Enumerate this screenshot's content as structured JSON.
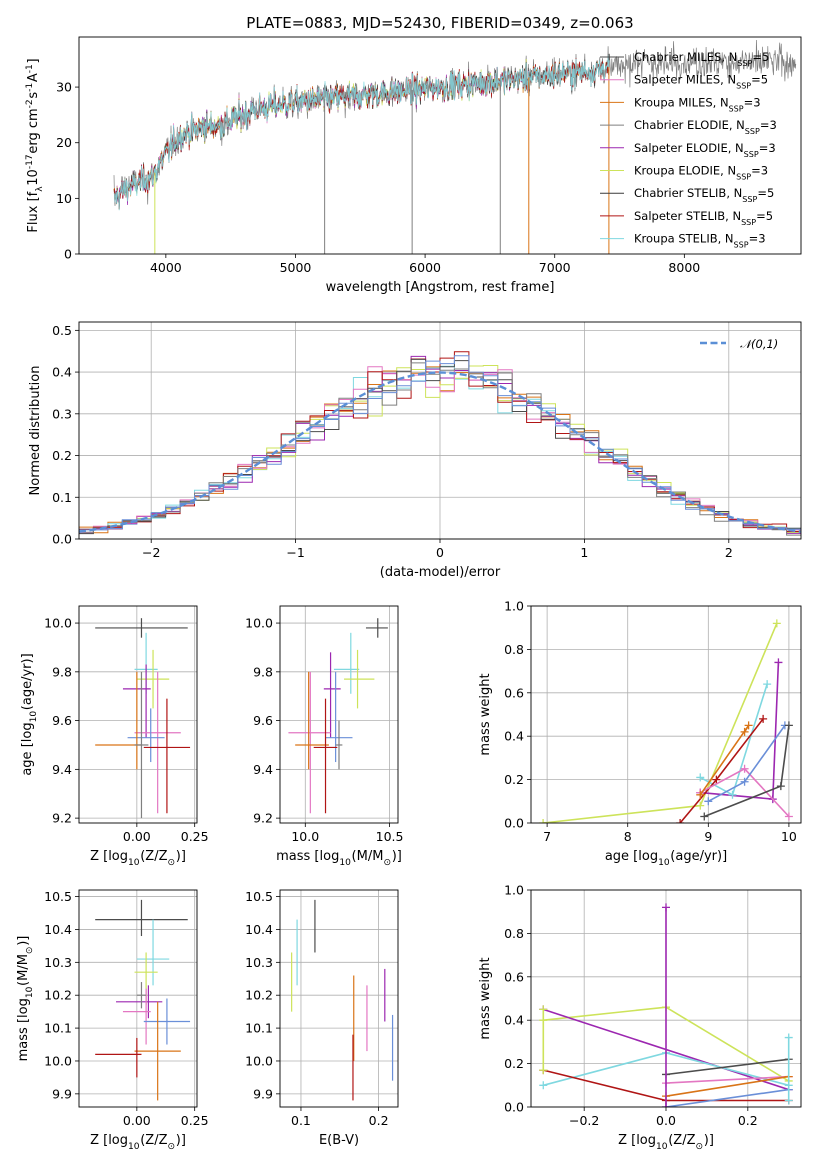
{
  "colors": {
    "Chabrier MILES": "#4c4c4c",
    "Salpeter MILES": "#e377c2",
    "Kroupa MILES": "#d97417",
    "Chabrier ELODIE": "#7f7f7f",
    "Salpeter ELODIE": "#9c27b0",
    "Kroupa ELODIE": "#cde35a",
    "Chabrier STELIB": "#3a3a3a",
    "Salpeter STELIB": "#b01515",
    "Kroupa STELIB": "#7fd8e0",
    "panel2_extra": [
      "#d97417",
      "#7fd8e0",
      "#cde35a",
      "#9c27b0",
      "#e377c2",
      "#b01515",
      "#4c4c4c",
      "#7f7f7f",
      "#6a8fd8"
    ],
    "age_line_colors": [
      "#cde35a",
      "#9c27b0",
      "#7fd8e0",
      "#b01515",
      "#e377c2",
      "#6a8fd8",
      "#4c4c4c",
      "#d97417"
    ],
    "err_colors": [
      "#4c4c4c",
      "#7fd8e0",
      "#cde35a",
      "#9c27b0",
      "#e377c2",
      "#6a8fd8",
      "#d97417",
      "#b01515",
      "#7f7f7f"
    ],
    "normal": "#5b8fd6"
  },
  "chart_data": [
    {
      "type": "line",
      "id": "spectrum",
      "title": "PLATE=0883, MJD=52430, FIBERID=0349, z=0.063",
      "xlabel": "wavelength [Angstrom, rest frame]",
      "ylabel": "Flux [f$_\\lambda$10$^{-17}$ erg cm$^{-2}$ s$^{-1}$ A$^{-1}$]",
      "xlim": [
        3330,
        8900
      ],
      "ylim": [
        0,
        39
      ],
      "xticks": [
        4000,
        5000,
        6000,
        7000,
        8000
      ],
      "yticks": [
        0,
        10,
        20,
        30
      ],
      "grid": false,
      "legend_position": "right",
      "legend": [
        {
          "base": "Chabrier MILES",
          "n": "5"
        },
        {
          "base": "Salpeter MILES",
          "n": "5"
        },
        {
          "base": "Kroupa MILES",
          "n": "3"
        },
        {
          "base": "Chabrier ELODIE",
          "n": "3"
        },
        {
          "base": "Salpeter ELODIE",
          "n": "3"
        },
        {
          "base": "Kroupa ELODIE",
          "n": "3"
        },
        {
          "base": "Chabrier STELIB",
          "n": "5"
        },
        {
          "base": "Salpeter STELIB",
          "n": "5"
        },
        {
          "base": "Kroupa STELIB",
          "n": "3"
        }
      ],
      "continuum": {
        "x": [
          3600,
          3700,
          3800,
          3900,
          4000,
          4100,
          4200,
          4300,
          4400,
          4500,
          4700,
          4900,
          5100,
          5300,
          5500,
          5700,
          5900,
          6100,
          6300,
          6500,
          6700,
          6900,
          7100,
          7300,
          7500,
          7700,
          7900,
          8100,
          8300,
          8500,
          8700,
          8850
        ],
        "y": [
          10,
          12,
          13,
          14,
          18,
          21,
          22,
          23,
          23,
          24,
          26,
          27,
          27.5,
          28,
          28.5,
          29,
          29.5,
          30,
          30.5,
          31,
          31.5,
          32,
          32.5,
          33,
          34,
          34.5,
          34.5,
          34.5,
          34.5,
          34.5,
          34.5,
          34.5
        ]
      }
    },
    {
      "type": "step",
      "id": "residuals",
      "xlabel": "(data-model)/error",
      "ylabel": "Normed distribution",
      "xlim": [
        -2.5,
        2.5
      ],
      "ylim": [
        0,
        0.52
      ],
      "xticks": [
        -2,
        -1,
        0,
        1,
        2
      ],
      "yticks": [
        0.0,
        0.1,
        0.2,
        0.3,
        0.4,
        0.5
      ],
      "grid": true,
      "legend_position": "top-right",
      "legend_label": "$\\mathcal{N}(0,1)$",
      "bins": {
        "start": -2.5,
        "width": 0.1,
        "count": 50
      }
    },
    {
      "type": "scatter",
      "id": "age_vs_Z",
      "xlabel": "Z [log$_{10}$(Z/Z$_\\odot$)]",
      "ylabel": "age  [log$_{10}$(age/yr)]",
      "xlim": [
        -0.25,
        0.26
      ],
      "ylim": [
        9.18,
        10.07
      ],
      "xticks": [
        0.0,
        0.25
      ],
      "yticks": [
        9.2,
        9.4,
        9.6,
        9.8,
        10.0
      ],
      "grid": true,
      "points": [
        {
          "x": 0.02,
          "y": 9.98,
          "xerr": [
            0.2,
            0.2
          ],
          "yerr": [
            0.04,
            0.04
          ]
        },
        {
          "x": 0.04,
          "y": 9.81,
          "xerr": [
            0.05,
            0.05
          ],
          "yerr": [
            0.1,
            0.15
          ]
        },
        {
          "x": 0.07,
          "y": 9.77,
          "xerr": [
            0.07,
            0.07
          ],
          "yerr": [
            0.12,
            0.12
          ]
        },
        {
          "x": 0.04,
          "y": 9.73,
          "xerr": [
            0.1,
            0.02
          ],
          "yerr": [
            0.2,
            0.1
          ]
        },
        {
          "x": 0.09,
          "y": 9.55,
          "xerr": [
            0.1,
            0.1
          ],
          "yerr": [
            0.33,
            0.25
          ]
        },
        {
          "x": 0.06,
          "y": 9.53,
          "xerr": [
            0.1,
            0.06
          ],
          "yerr": [
            0.1,
            0.12
          ]
        },
        {
          "x": 0.0,
          "y": 9.5,
          "xerr": [
            0.18,
            0.02
          ],
          "yerr": [
            0.1,
            0.3
          ]
        },
        {
          "x": 0.13,
          "y": 9.49,
          "xerr": [
            0.1,
            0.1
          ],
          "yerr": [
            0.27,
            0.2
          ]
        },
        {
          "x": 0.02,
          "y": 9.5,
          "xerr": [
            0.03,
            0.03
          ],
          "yerr": [
            0.3,
            0.3
          ]
        }
      ]
    },
    {
      "type": "scatter",
      "id": "age_vs_mass",
      "xlabel": "mass [log$_{10}$(M/M$_\\odot$)]",
      "ylabel": "",
      "xlim": [
        9.85,
        10.55
      ],
      "ylim": [
        9.18,
        10.07
      ],
      "xticks": [
        10.0,
        10.5
      ],
      "yticks": [
        9.2,
        9.4,
        9.6,
        9.8,
        10.0
      ],
      "grid": true,
      "points": [
        {
          "x": 10.43,
          "y": 9.98,
          "xerr": [
            0.07,
            0.06
          ],
          "yerr": [
            0.04,
            0.04
          ]
        },
        {
          "x": 10.27,
          "y": 9.81,
          "xerr": [
            0.1,
            0.05
          ],
          "yerr": [
            0.1,
            0.15
          ]
        },
        {
          "x": 10.31,
          "y": 9.77,
          "xerr": [
            0.08,
            0.1
          ],
          "yerr": [
            0.12,
            0.12
          ]
        },
        {
          "x": 10.15,
          "y": 9.73,
          "xerr": [
            0.04,
            0.06
          ],
          "yerr": [
            0.2,
            0.15
          ]
        },
        {
          "x": 10.03,
          "y": 9.55,
          "xerr": [
            0.13,
            0.12
          ],
          "yerr": [
            0.33,
            0.25
          ]
        },
        {
          "x": 10.18,
          "y": 9.53,
          "xerr": [
            0.06,
            0.1
          ],
          "yerr": [
            0.1,
            0.27
          ]
        },
        {
          "x": 10.02,
          "y": 9.5,
          "xerr": [
            0.08,
            0.12
          ],
          "yerr": [
            0.1,
            0.3
          ]
        },
        {
          "x": 10.12,
          "y": 9.49,
          "xerr": [
            0.07,
            0.07
          ],
          "yerr": [
            0.27,
            0.2
          ]
        },
        {
          "x": 10.2,
          "y": 9.5,
          "xerr": [
            0.02,
            0.02
          ],
          "yerr": [
            0.1,
            0.1
          ]
        }
      ]
    },
    {
      "type": "line",
      "id": "weight_vs_age",
      "xlabel": "age  [log$_{10}$(age/yr)]",
      "ylabel": "mass weight",
      "xlim": [
        6.8,
        10.15
      ],
      "ylim": [
        0,
        1.0
      ],
      "xticks": [
        7,
        8,
        9,
        10
      ],
      "yticks": [
        0.0,
        0.2,
        0.4,
        0.6,
        0.8,
        1.0
      ],
      "grid": true,
      "series": [
        {
          "x": [
            6.95,
            8.9,
            9.85
          ],
          "y": [
            0.0,
            0.08,
            0.92
          ]
        },
        {
          "x": [
            8.9,
            9.8,
            9.87
          ],
          "y": [
            0.14,
            0.11,
            0.74
          ]
        },
        {
          "x": [
            8.9,
            9.3,
            9.73
          ],
          "y": [
            0.21,
            0.13,
            0.64
          ]
        },
        {
          "x": [
            8.65,
            9.1,
            9.68
          ],
          "y": [
            0.0,
            0.2,
            0.48
          ]
        },
        {
          "x": [
            8.9,
            9.45,
            10.0
          ],
          "y": [
            0.14,
            0.25,
            0.03
          ]
        },
        {
          "x": [
            9.0,
            9.45,
            9.95
          ],
          "y": [
            0.1,
            0.19,
            0.45
          ]
        },
        {
          "x": [
            8.95,
            9.9,
            10.0
          ],
          "y": [
            0.03,
            0.17,
            0.45
          ]
        },
        {
          "x": [
            8.9,
            9.5,
            9.45
          ],
          "y": [
            0.13,
            0.45,
            0.42
          ]
        }
      ]
    },
    {
      "type": "scatter",
      "id": "mass_vs_Z",
      "xlabel": "Z [log$_{10}$(Z/Z$_\\odot$)]",
      "ylabel": "mass [log$_{10}$(M/M$_\\odot$)]",
      "xlim": [
        -0.25,
        0.26
      ],
      "ylim": [
        9.86,
        10.52
      ],
      "xticks": [
        0.0,
        0.25
      ],
      "yticks": [
        9.9,
        10.0,
        10.1,
        10.2,
        10.3,
        10.4,
        10.5
      ],
      "grid": true,
      "points": [
        {
          "x": 0.02,
          "y": 10.43,
          "xerr": [
            0.2,
            0.2
          ],
          "yerr": [
            0.05,
            0.06
          ]
        },
        {
          "x": 0.07,
          "y": 10.31,
          "xerr": [
            0.07,
            0.07
          ],
          "yerr": [
            0.08,
            0.12
          ]
        },
        {
          "x": 0.04,
          "y": 10.27,
          "xerr": [
            0.05,
            0.05
          ],
          "yerr": [
            0.1,
            0.06
          ]
        },
        {
          "x": 0.05,
          "y": 10.18,
          "xerr": [
            0.14,
            0.06
          ],
          "yerr": [
            0.05,
            0.05
          ]
        },
        {
          "x": 0.04,
          "y": 10.15,
          "xerr": [
            0.1,
            0.02
          ],
          "yerr": [
            0.1,
            0.07
          ]
        },
        {
          "x": 0.13,
          "y": 10.12,
          "xerr": [
            0.1,
            0.1
          ],
          "yerr": [
            0.07,
            0.07
          ]
        },
        {
          "x": 0.09,
          "y": 10.03,
          "xerr": [
            0.1,
            0.1
          ],
          "yerr": [
            0.15,
            0.15
          ]
        },
        {
          "x": 0.0,
          "y": 10.02,
          "xerr": [
            0.18,
            0.02
          ],
          "yerr": [
            0.07,
            0.05
          ]
        },
        {
          "x": 0.02,
          "y": 10.2,
          "xerr": [
            0.02,
            0.02
          ],
          "yerr": [
            0.04,
            0.04
          ]
        }
      ]
    },
    {
      "type": "scatter",
      "id": "mass_vs_EBV",
      "xlabel": "E(B-V)",
      "ylabel": "",
      "xlim": [
        0.073,
        0.225
      ],
      "ylim": [
        9.86,
        10.52
      ],
      "xticks": [
        0.1,
        0.2
      ],
      "yticks": [
        9.9,
        10.0,
        10.1,
        10.2,
        10.3,
        10.4,
        10.5
      ],
      "grid": true,
      "points": [
        {
          "x": 0.118,
          "y": 10.41,
          "yerr": [
            0.08,
            0.08
          ]
        },
        {
          "x": 0.095,
          "y": 10.33,
          "yerr": [
            0.1,
            0.1
          ]
        },
        {
          "x": 0.088,
          "y": 10.24,
          "yerr": [
            0.09,
            0.09
          ]
        },
        {
          "x": 0.208,
          "y": 10.2,
          "yerr": [
            0.08,
            0.08
          ]
        },
        {
          "x": 0.185,
          "y": 10.13,
          "yerr": [
            0.1,
            0.1
          ]
        },
        {
          "x": 0.218,
          "y": 10.04,
          "yerr": [
            0.1,
            0.1
          ]
        },
        {
          "x": 0.168,
          "y": 10.13,
          "yerr": [
            0.13,
            0.13
          ]
        },
        {
          "x": 0.167,
          "y": 9.98,
          "yerr": [
            0.1,
            0.1
          ]
        }
      ]
    },
    {
      "type": "line",
      "id": "weight_vs_Z",
      "xlabel": "Z [log$_{10}$(Z/Z$_\\odot$)]",
      "ylabel": "mass weight",
      "xlim": [
        -0.33,
        0.33
      ],
      "ylim": [
        0,
        1.0
      ],
      "xticks": [
        -0.2,
        0.0,
        0.2
      ],
      "yticks": [
        0.0,
        0.2,
        0.4,
        0.6,
        0.8,
        1.0
      ],
      "grid": true,
      "series": [
        {
          "x": [
            -0.3,
            0.0,
            0.3
          ],
          "y": [
            0.4,
            0.46,
            0.12
          ]
        },
        {
          "x": [
            -0.3,
            0.3
          ],
          "y": [
            0.45,
            0.08
          ]
        },
        {
          "x": [
            -0.3,
            0.0,
            0.3
          ],
          "y": [
            0.1,
            0.25,
            0.1
          ]
        },
        {
          "x": [
            -0.3,
            0.0,
            0.3
          ],
          "y": [
            0.17,
            0.03,
            0.03
          ]
        },
        {
          "x": [
            0.0,
            0.3
          ],
          "y": [
            0.11,
            0.14
          ]
        },
        {
          "x": [
            0.0,
            0.3
          ],
          "y": [
            0.0,
            0.08
          ]
        },
        {
          "x": [
            0.0,
            0.3
          ],
          "y": [
            0.15,
            0.22
          ]
        },
        {
          "x": [
            0.0,
            0.3
          ],
          "y": [
            0.05,
            0.14
          ]
        },
        {
          "x": [
            -0.3,
            -0.3
          ],
          "y": [
            0.45,
            0.17
          ]
        },
        {
          "x": [
            0.0,
            0.0
          ],
          "y": [
            0.92,
            0.0
          ]
        },
        {
          "x": [
            0.3,
            0.3
          ],
          "y": [
            0.32,
            0.03
          ]
        }
      ]
    }
  ]
}
